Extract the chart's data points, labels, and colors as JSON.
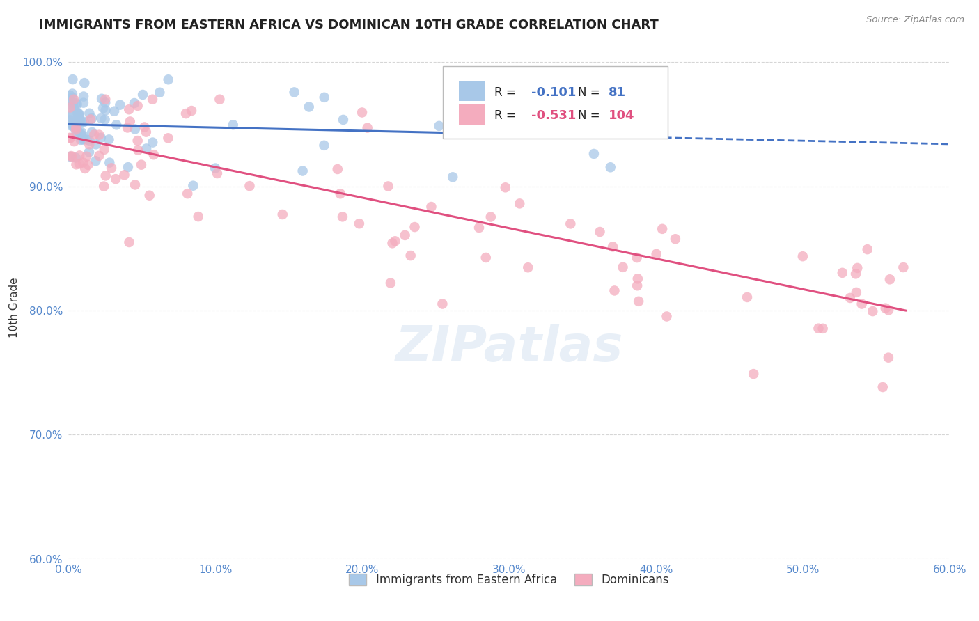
{
  "title": "IMMIGRANTS FROM EASTERN AFRICA VS DOMINICAN 10TH GRADE CORRELATION CHART",
  "source": "Source: ZipAtlas.com",
  "ylabel": "10th Grade",
  "xlim": [
    0.0,
    0.6
  ],
  "ylim": [
    0.6,
    1.005
  ],
  "xtick_vals": [
    0.0,
    0.1,
    0.2,
    0.3,
    0.4,
    0.5,
    0.6
  ],
  "xtick_labels": [
    "0.0%",
    "10.0%",
    "20.0%",
    "30.0%",
    "40.0%",
    "50.0%",
    "60.0%"
  ],
  "ytick_vals": [
    0.6,
    0.7,
    0.8,
    0.9,
    1.0
  ],
  "ytick_labels": [
    "60.0%",
    "70.0%",
    "80.0%",
    "90.0%",
    "100.0%"
  ],
  "blue_R": -0.101,
  "blue_N": 81,
  "pink_R": -0.531,
  "pink_N": 104,
  "blue_color": "#A8C8E8",
  "pink_color": "#F4ACBE",
  "blue_line_color": "#4472C4",
  "pink_line_color": "#E05080",
  "watermark": "ZIPatlas",
  "legend_label_blue": "Immigrants from Eastern Africa",
  "legend_label_pink": "Dominicans",
  "blue_line_solid_end": 0.35,
  "blue_line_x0": 0.0,
  "blue_line_x1": 0.6,
  "blue_line_y0": 0.95,
  "blue_line_y1": 0.934,
  "pink_line_x0": 0.0,
  "pink_line_x1": 0.57,
  "pink_line_y0": 0.94,
  "pink_line_y1": 0.8
}
